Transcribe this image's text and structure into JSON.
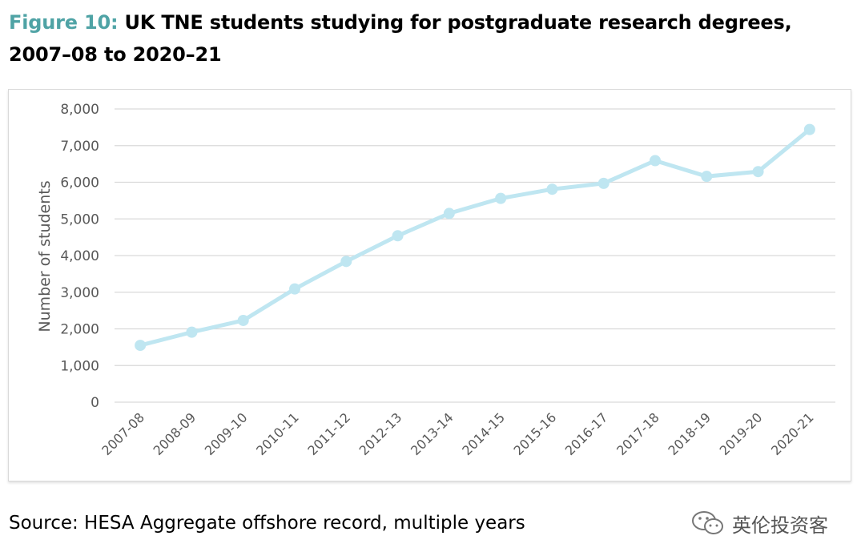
{
  "figure": {
    "label": "Figure 10:",
    "title": "UK TNE students studying for postgraduate research degrees, 2007–08 to 2020–21"
  },
  "source": "Source: HESA Aggregate offshore record, multiple years",
  "watermark": {
    "text": "英伦投资客",
    "icon": "wechat-icon"
  },
  "chart_data": {
    "type": "line",
    "title": "",
    "xlabel": "",
    "ylabel": "Number of students",
    "ylim": [
      0,
      8000
    ],
    "yticks": [
      0,
      1000,
      2000,
      3000,
      4000,
      5000,
      6000,
      7000,
      8000
    ],
    "ytick_labels": [
      "0",
      "1,000",
      "2,000",
      "3,000",
      "4,000",
      "5,000",
      "6,000",
      "7,000",
      "8,000"
    ],
    "grid": true,
    "legend": "none",
    "categories": [
      "2007-08",
      "2008-09",
      "2009-10",
      "2010-11",
      "2011-12",
      "2012-13",
      "2013-14",
      "2014-15",
      "2015-16",
      "2016-17",
      "2017-18",
      "2018-19",
      "2019-20",
      "2020-21"
    ],
    "series": [
      {
        "values": [
          1550,
          1910,
          2230,
          3090,
          3840,
          4540,
          5150,
          5560,
          5810,
          5970,
          6590,
          6160,
          6290,
          7440
        ],
        "color": "#bfe6f1"
      }
    ]
  }
}
